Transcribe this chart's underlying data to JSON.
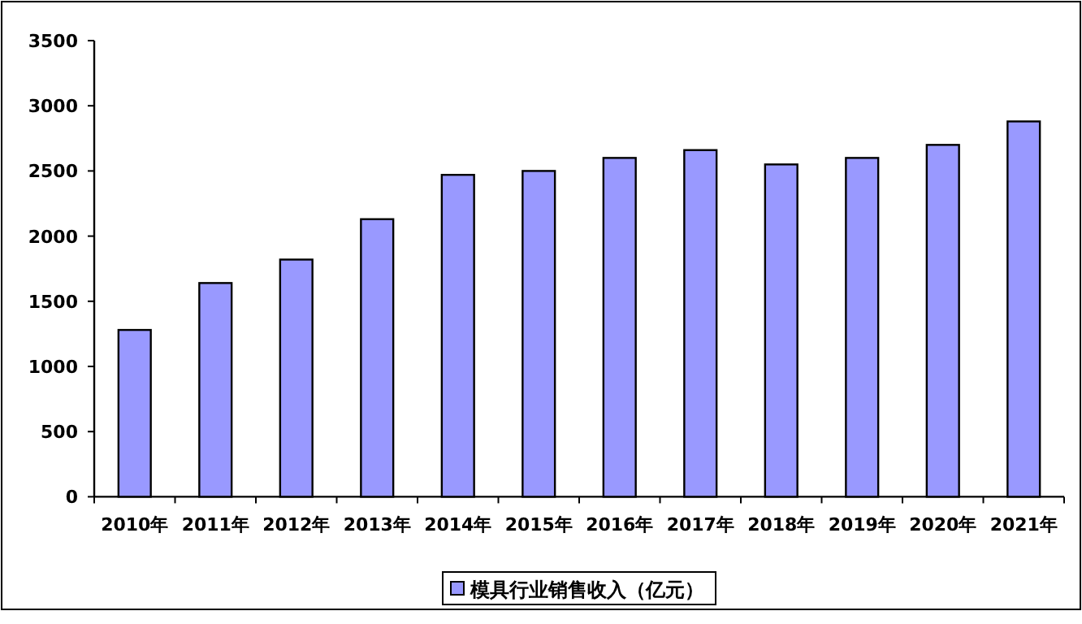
{
  "chart_data": {
    "type": "bar",
    "categories": [
      "2010年",
      "2011年",
      "2012年",
      "2013年",
      "2014年",
      "2015年",
      "2016年",
      "2017年",
      "2018年",
      "2019年",
      "2020年",
      "2021年"
    ],
    "series": [
      {
        "name": "模具行业销售收入（亿元）",
        "color": "#9999ff",
        "values": [
          1280,
          1640,
          1820,
          2130,
          2470,
          2500,
          2600,
          2660,
          2550,
          2600,
          2700,
          2880
        ]
      }
    ],
    "ylim": [
      0,
      3500
    ],
    "yticks": [
      0,
      500,
      1000,
      1500,
      2000,
      2500,
      3000,
      3500
    ],
    "grid": false,
    "legend": "bottom"
  }
}
